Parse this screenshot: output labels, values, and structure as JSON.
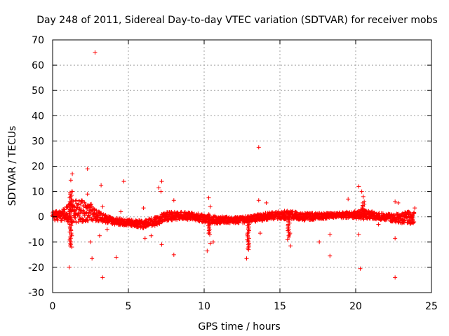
{
  "chart_data": {
    "type": "scatter",
    "title": "Day 248 of 2011, Sidereal Day-to-day VTEC variation (SDTVAR) for receiver mobs",
    "xlabel": "GPS time / hours",
    "ylabel": "SDTVAR / TECUs",
    "xlim": [
      0,
      25
    ],
    "ylim": [
      -30,
      70
    ],
    "xticks": [
      0,
      5,
      10,
      15,
      20,
      25
    ],
    "yticks": [
      -30,
      -20,
      -10,
      0,
      10,
      20,
      30,
      40,
      50,
      60,
      70
    ],
    "grid": true,
    "marker": "+",
    "marker_color": "#ff0000",
    "series": [
      {
        "name": "SDTVAR",
        "dense_band": [
          {
            "x": 0.0,
            "low": -1.5,
            "high": 2.5
          },
          {
            "x": 0.5,
            "low": -1.5,
            "high": 2.0
          },
          {
            "x": 1.0,
            "low": -2.0,
            "high": 4.5
          },
          {
            "x": 1.3,
            "low": -2.5,
            "high": 6.5
          },
          {
            "x": 2.0,
            "low": -2.0,
            "high": 6.5
          },
          {
            "x": 2.6,
            "low": -1.5,
            "high": 5.0
          },
          {
            "x": 3.2,
            "low": -2.0,
            "high": 1.5
          },
          {
            "x": 4.0,
            "low": -3.0,
            "high": -0.5
          },
          {
            "x": 5.0,
            "low": -3.5,
            "high": -1.0
          },
          {
            "x": 6.0,
            "low": -4.5,
            "high": -1.5
          },
          {
            "x": 6.8,
            "low": -3.5,
            "high": 0.0
          },
          {
            "x": 7.5,
            "low": -1.5,
            "high": 2.0
          },
          {
            "x": 8.5,
            "low": -1.0,
            "high": 2.0
          },
          {
            "x": 9.5,
            "low": -1.5,
            "high": 1.5
          },
          {
            "x": 10.5,
            "low": -3.0,
            "high": 0.5
          },
          {
            "x": 11.5,
            "low": -2.5,
            "high": 0.0
          },
          {
            "x": 12.5,
            "low": -2.5,
            "high": 0.0
          },
          {
            "x": 13.5,
            "low": -2.0,
            "high": 1.0
          },
          {
            "x": 14.5,
            "low": -1.0,
            "high": 2.0
          },
          {
            "x": 15.5,
            "low": -1.0,
            "high": 2.5
          },
          {
            "x": 16.5,
            "low": -1.5,
            "high": 1.5
          },
          {
            "x": 17.5,
            "low": -1.0,
            "high": 1.5
          },
          {
            "x": 18.5,
            "low": -0.5,
            "high": 1.5
          },
          {
            "x": 19.5,
            "low": -0.5,
            "high": 2.0
          },
          {
            "x": 20.5,
            "low": -1.0,
            "high": 3.0
          },
          {
            "x": 21.5,
            "low": -1.0,
            "high": 1.5
          },
          {
            "x": 22.5,
            "low": -2.0,
            "high": 1.0
          },
          {
            "x": 23.5,
            "low": -3.0,
            "high": 2.0
          },
          {
            "x": 23.9,
            "low": -3.0,
            "high": 2.0
          }
        ],
        "spikes": [
          {
            "x": 1.2,
            "low": -12,
            "high": 10
          },
          {
            "x": 10.3,
            "low": -7,
            "high": 1
          },
          {
            "x": 12.9,
            "low": -13,
            "high": -1
          },
          {
            "x": 15.6,
            "low": -8,
            "high": 1
          },
          {
            "x": 20.5,
            "low": -1,
            "high": 6
          }
        ],
        "points": [
          {
            "x": 2.8,
            "y": 65
          },
          {
            "x": 13.6,
            "y": 27.5
          },
          {
            "x": 1.3,
            "y": 17
          },
          {
            "x": 2.3,
            "y": 19
          },
          {
            "x": 1.2,
            "y": 14.5
          },
          {
            "x": 3.2,
            "y": 12.5
          },
          {
            "x": 4.7,
            "y": 14
          },
          {
            "x": 7.2,
            "y": 14
          },
          {
            "x": 7.0,
            "y": 11.5
          },
          {
            "x": 7.15,
            "y": 10
          },
          {
            "x": 2.3,
            "y": 9
          },
          {
            "x": 1.3,
            "y": 10
          },
          {
            "x": 8.0,
            "y": 6.5
          },
          {
            "x": 6.0,
            "y": 3.5
          },
          {
            "x": 3.3,
            "y": 4
          },
          {
            "x": 4.5,
            "y": 2
          },
          {
            "x": 10.3,
            "y": 7.5
          },
          {
            "x": 10.4,
            "y": 4
          },
          {
            "x": 13.6,
            "y": 6.5
          },
          {
            "x": 14.1,
            "y": 5.5
          },
          {
            "x": 19.5,
            "y": 7
          },
          {
            "x": 20.2,
            "y": 12
          },
          {
            "x": 20.4,
            "y": 10
          },
          {
            "x": 20.5,
            "y": 8
          },
          {
            "x": 22.6,
            "y": 6
          },
          {
            "x": 22.8,
            "y": 5.5
          },
          {
            "x": 23.9,
            "y": 3.5
          },
          {
            "x": 2.5,
            "y": -10
          },
          {
            "x": 3.1,
            "y": -7.5
          },
          {
            "x": 3.6,
            "y": -5
          },
          {
            "x": 1.1,
            "y": -20
          },
          {
            "x": 2.6,
            "y": -16.5
          },
          {
            "x": 3.3,
            "y": -24
          },
          {
            "x": 4.2,
            "y": -16
          },
          {
            "x": 6.1,
            "y": -8.5
          },
          {
            "x": 6.5,
            "y": -7.5
          },
          {
            "x": 7.2,
            "y": -11
          },
          {
            "x": 8.0,
            "y": -15
          },
          {
            "x": 10.2,
            "y": -13.5
          },
          {
            "x": 10.4,
            "y": -10.5
          },
          {
            "x": 10.6,
            "y": -10
          },
          {
            "x": 12.8,
            "y": -16.5
          },
          {
            "x": 13.7,
            "y": -6.5
          },
          {
            "x": 15.5,
            "y": -9
          },
          {
            "x": 15.7,
            "y": -11.5
          },
          {
            "x": 17.6,
            "y": -10
          },
          {
            "x": 18.3,
            "y": -7
          },
          {
            "x": 18.3,
            "y": -15.5
          },
          {
            "x": 20.2,
            "y": -7
          },
          {
            "x": 20.3,
            "y": -20.5
          },
          {
            "x": 21.5,
            "y": -3
          },
          {
            "x": 22.6,
            "y": -8.5
          },
          {
            "x": 22.6,
            "y": -24
          }
        ]
      }
    ]
  }
}
